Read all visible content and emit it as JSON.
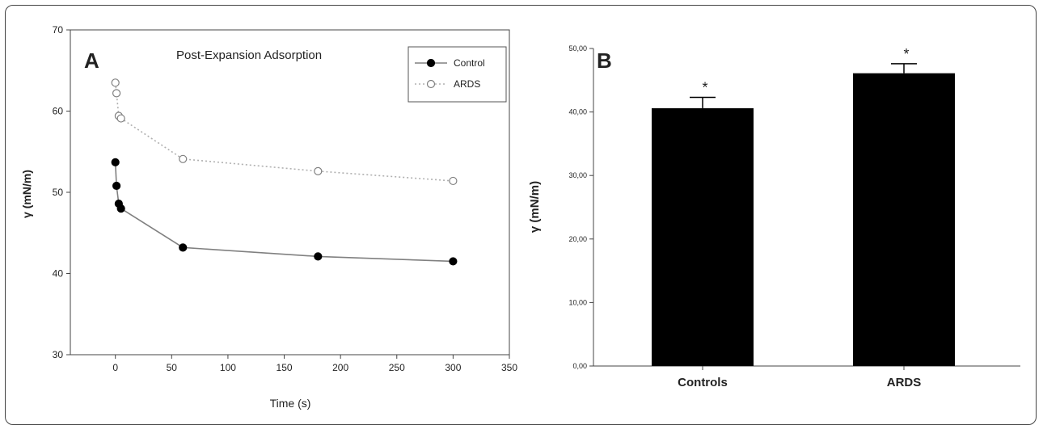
{
  "chart_data": [
    {
      "type": "line",
      "panel_label": "A",
      "title": "Post-Expansion Adsorption",
      "xlabel": "Time (s)",
      "ylabel": "γ (mN/m)",
      "xlim": [
        -40,
        350
      ],
      "ylim": [
        30,
        70
      ],
      "xticks": [
        0,
        50,
        100,
        150,
        200,
        250,
        300,
        350
      ],
      "yticks": [
        30,
        40,
        50,
        60,
        70
      ],
      "grid": false,
      "legend_position": "top-right",
      "series": [
        {
          "name": "Control",
          "marker": "filled-circle",
          "line_style": "solid",
          "color": "#808080",
          "marker_color": "#000000",
          "x": [
            0,
            1,
            3,
            5,
            60,
            180,
            300
          ],
          "y": [
            53.7,
            50.8,
            48.6,
            48.0,
            43.2,
            42.1,
            41.5
          ]
        },
        {
          "name": "ARDS",
          "marker": "open-circle",
          "line_style": "dotted",
          "color": "#b0b0b0",
          "marker_color": "#808080",
          "x": [
            0,
            1,
            3,
            5,
            60,
            180,
            300
          ],
          "y": [
            63.5,
            62.2,
            59.4,
            59.1,
            54.1,
            52.6,
            51.4
          ]
        }
      ]
    },
    {
      "type": "bar",
      "panel_label": "B",
      "title": "",
      "xlabel": "",
      "ylabel": "γ (mN/m)",
      "ylim": [
        0,
        50
      ],
      "yticks": [
        "0,00",
        "10,00",
        "20,00",
        "30,00",
        "40,00",
        "50,00"
      ],
      "ytick_values": [
        0,
        10,
        20,
        30,
        40,
        50
      ],
      "grid": false,
      "categories": [
        "Controls",
        "ARDS"
      ],
      "values": [
        40.6,
        46.1
      ],
      "error_upper": [
        42.3,
        47.6
      ],
      "annotations": [
        "*",
        "*"
      ],
      "bar_color": "#000000"
    }
  ]
}
